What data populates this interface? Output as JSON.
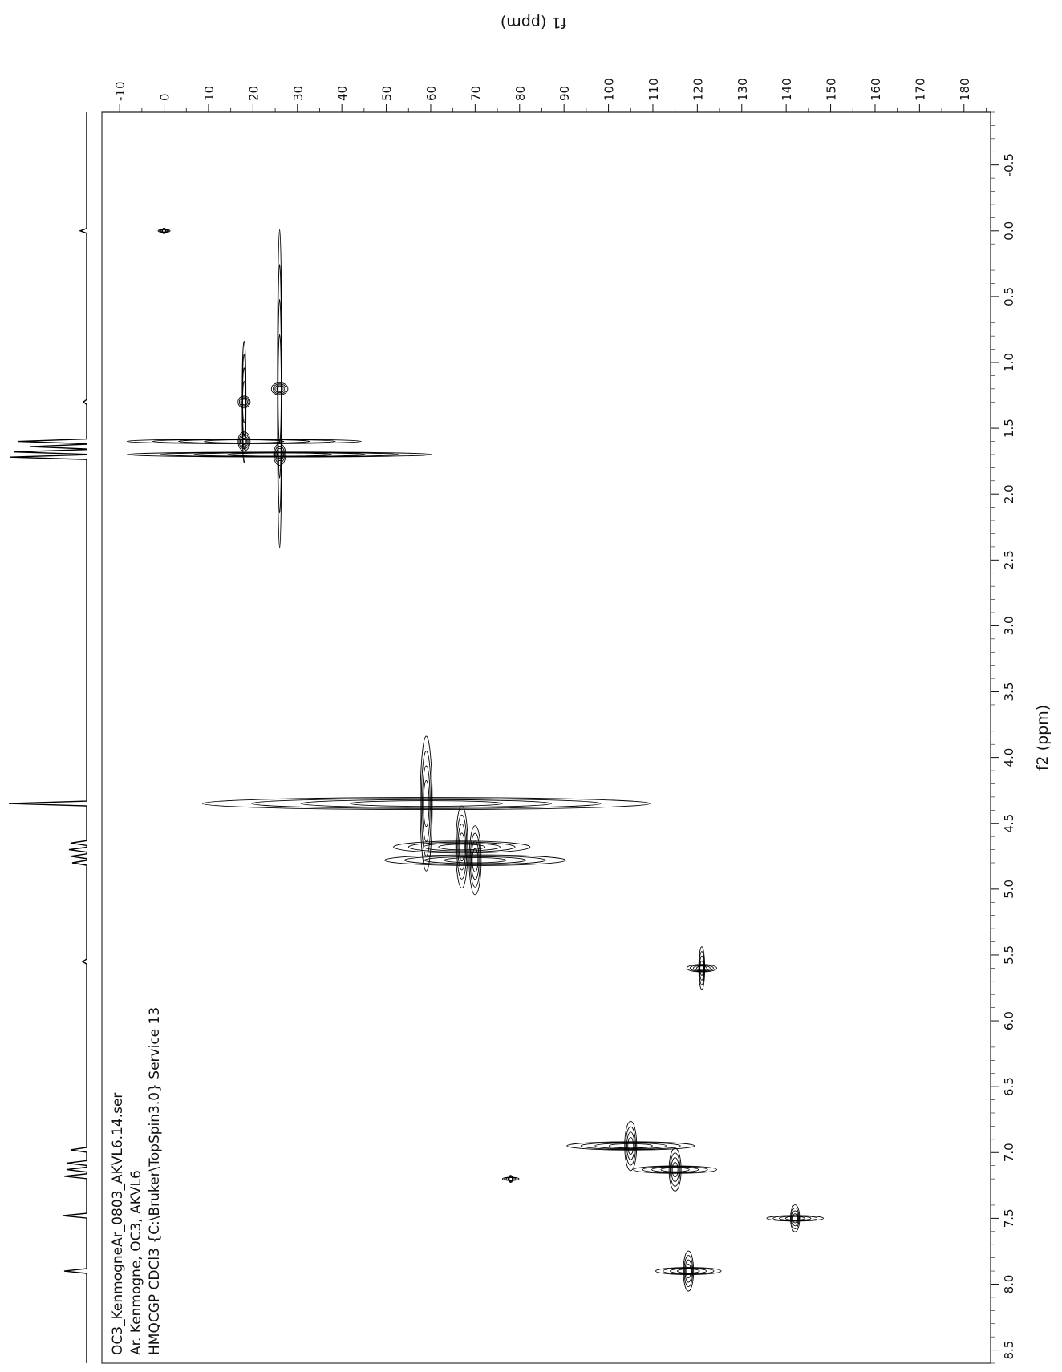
{
  "chart_data": {
    "type": "heatmap",
    "subtype": "2D NMR HMQC contour plot (page rotated 90 degrees)",
    "title_lines": [
      "OC3_KenmogneAr_0803_AKVL6.14.ser",
      "Ar. Kenmogne, OC3, AKVL6",
      "HMQCGP CDCl3 {C:\\Bruker\\TopSpin3.0} Service 13"
    ],
    "f1_axis": {
      "label": "f1 (ppm)",
      "ticks": [
        -10,
        0,
        10,
        20,
        30,
        40,
        50,
        60,
        70,
        80,
        90,
        100,
        110,
        120,
        130,
        140,
        150,
        160,
        170,
        180
      ],
      "range": [
        -14,
        186
      ]
    },
    "f2_axis": {
      "label": "f2 (ppm)",
      "ticks": [
        "-0.5",
        "0.0",
        "0.5",
        "1.0",
        "1.5",
        "2.0",
        "2.5",
        "3.0",
        "3.5",
        "4.0",
        "4.5",
        "5.0",
        "5.5",
        "6.0",
        "6.5",
        "7.0",
        "7.5",
        "8.0",
        "8.5"
      ],
      "range": [
        -0.9,
        8.6
      ]
    },
    "grid": false,
    "proton_projection": [
      {
        "f2": 0.0,
        "h": 0.08
      },
      {
        "f2": 1.3,
        "h": 0.04
      },
      {
        "f2": 1.6,
        "h": 0.85
      },
      {
        "f2": 1.64,
        "h": 0.7
      },
      {
        "f2": 1.68,
        "h": 0.9
      },
      {
        "f2": 1.72,
        "h": 0.95
      },
      {
        "f2": 4.35,
        "h": 0.97
      },
      {
        "f2": 4.65,
        "h": 0.2
      },
      {
        "f2": 4.7,
        "h": 0.22
      },
      {
        "f2": 4.75,
        "h": 0.2
      },
      {
        "f2": 4.8,
        "h": 0.18
      },
      {
        "f2": 5.55,
        "h": 0.05
      },
      {
        "f2": 6.98,
        "h": 0.2
      },
      {
        "f2": 7.08,
        "h": 0.25
      },
      {
        "f2": 7.13,
        "h": 0.25
      },
      {
        "f2": 7.18,
        "h": 0.28
      },
      {
        "f2": 7.48,
        "h": 0.3
      },
      {
        "f2": 7.9,
        "h": 0.28
      }
    ],
    "cross_peaks": [
      {
        "f2": 0.0,
        "f1": 0,
        "w": 0.02,
        "len": 2
      },
      {
        "f2": 1.3,
        "f1": 18,
        "w": 0.9,
        "len": 2
      },
      {
        "f2": 1.6,
        "f1": 18,
        "w": 0.12,
        "len": 52
      },
      {
        "f2": 1.7,
        "f1": 26,
        "w": 0.14,
        "len": 68
      },
      {
        "f2": 1.2,
        "f1": 26,
        "w": 2.4,
        "len": 3
      },
      {
        "f2": 4.35,
        "f1": 59,
        "w": 1.0,
        "len": 100
      },
      {
        "f2": 4.68,
        "f1": 67,
        "w": 0.6,
        "len": 30
      },
      {
        "f2": 4.78,
        "f1": 70,
        "w": 0.5,
        "len": 40
      },
      {
        "f2": 5.6,
        "f1": 121,
        "w": 0.3,
        "len": 6
      },
      {
        "f2": 6.95,
        "f1": 105,
        "w": 0.35,
        "len": 28
      },
      {
        "f2": 7.13,
        "f1": 115,
        "w": 0.3,
        "len": 18
      },
      {
        "f2": 7.2,
        "f1": 78,
        "w": 0.03,
        "len": 3
      },
      {
        "f2": 7.5,
        "f1": 142,
        "w": 0.18,
        "len": 12
      },
      {
        "f2": 7.9,
        "f1": 118,
        "w": 0.28,
        "len": 14
      }
    ]
  }
}
